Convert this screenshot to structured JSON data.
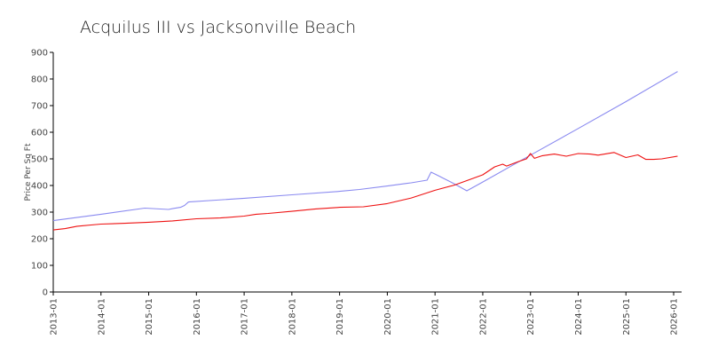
{
  "chart_data": {
    "type": "line",
    "title": "Acquilus III vs Jacksonville Beach",
    "xlabel": "",
    "ylabel": "Price Per Sq Ft",
    "ylim": [
      0,
      900
    ],
    "xlim": [
      "2013-01",
      "2026-03"
    ],
    "grid": false,
    "legend": "none",
    "y_ticks": [
      0,
      100,
      200,
      300,
      400,
      500,
      600,
      700,
      800,
      900
    ],
    "x_ticks": [
      "2013-01",
      "2014-01",
      "2015-01",
      "2016-01",
      "2017-01",
      "2018-01",
      "2019-01",
      "2020-01",
      "2021-01",
      "2022-01",
      "2023-01",
      "2024-01",
      "2025-01",
      "2026-01"
    ],
    "series": [
      {
        "color": "#8a8af0",
        "points": [
          [
            "2013-01",
            268
          ],
          [
            "2014-01",
            292
          ],
          [
            "2014-12",
            315
          ],
          [
            "2015-06",
            310
          ],
          [
            "2015-07",
            313
          ],
          [
            "2015-09",
            318
          ],
          [
            "2015-10",
            325
          ],
          [
            "2015-11",
            338
          ],
          [
            "2016-06",
            345
          ],
          [
            "2017-01",
            352
          ],
          [
            "2018-01",
            365
          ],
          [
            "2019-01",
            378
          ],
          [
            "2019-06",
            385
          ],
          [
            "2020-01",
            398
          ],
          [
            "2020-06",
            408
          ],
          [
            "2020-07",
            410
          ],
          [
            "2020-11",
            420
          ],
          [
            "2020-12",
            450
          ],
          [
            "2021-01",
            443
          ],
          [
            "2021-06",
            405
          ],
          [
            "2021-09",
            380
          ],
          [
            "2022-01",
            413
          ],
          [
            "2023-01",
            514
          ],
          [
            "2024-01",
            614
          ],
          [
            "2025-01",
            715
          ],
          [
            "2026-02",
            828
          ]
        ]
      },
      {
        "color": "#ee1111",
        "points": [
          [
            "2013-01",
            233
          ],
          [
            "2013-04",
            238
          ],
          [
            "2013-07",
            247
          ],
          [
            "2014-01",
            255
          ],
          [
            "2014-07",
            258
          ],
          [
            "2015-01",
            262
          ],
          [
            "2015-07",
            267
          ],
          [
            "2016-01",
            275
          ],
          [
            "2016-07",
            278
          ],
          [
            "2017-01",
            285
          ],
          [
            "2017-04",
            292
          ],
          [
            "2017-07",
            295
          ],
          [
            "2018-01",
            303
          ],
          [
            "2018-07",
            312
          ],
          [
            "2019-01",
            318
          ],
          [
            "2019-07",
            320
          ],
          [
            "2020-01",
            332
          ],
          [
            "2020-07",
            353
          ],
          [
            "2021-01",
            382
          ],
          [
            "2021-06",
            402
          ],
          [
            "2022-01",
            440
          ],
          [
            "2022-04",
            470
          ],
          [
            "2022-06",
            480
          ],
          [
            "2022-07",
            473
          ],
          [
            "2022-10",
            490
          ],
          [
            "2022-12",
            500
          ],
          [
            "2023-01",
            520
          ],
          [
            "2023-02",
            502
          ],
          [
            "2023-04",
            512
          ],
          [
            "2023-07",
            518
          ],
          [
            "2023-10",
            510
          ],
          [
            "2024-01",
            520
          ],
          [
            "2024-04",
            518
          ],
          [
            "2024-06",
            514
          ],
          [
            "2024-10",
            524
          ],
          [
            "2025-01",
            505
          ],
          [
            "2025-04",
            515
          ],
          [
            "2025-06",
            498
          ],
          [
            "2025-08",
            498
          ],
          [
            "2025-10",
            500
          ],
          [
            "2026-02",
            510
          ]
        ]
      }
    ]
  }
}
